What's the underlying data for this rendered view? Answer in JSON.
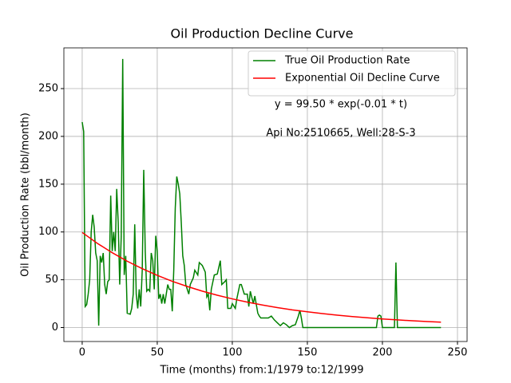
{
  "chart_data": {
    "type": "line",
    "title": "Oil Production Decline Curve",
    "x_label": "Time (months) from:1/1979 to:12/1999",
    "y_label": "Oil Production Rate (bbl/month)",
    "annotations": [
      "y = 99.50 * exp(-0.01 * t)",
      "Api No:2510665, Well:28-S-3"
    ],
    "xlim": [
      -12.2,
      256.4
    ],
    "ylim": [
      -14.6,
      292.6
    ],
    "xticks": [
      0,
      50,
      100,
      150,
      200,
      250
    ],
    "yticks": [
      0,
      50,
      100,
      150,
      200,
      250
    ],
    "grid": true,
    "legend": "upper right",
    "series": [
      {
        "name": "True Oil Production Rate",
        "color": "#008000",
        "x": [
          0,
          1,
          2,
          3,
          4,
          5,
          6,
          7,
          8,
          9,
          10,
          11,
          12,
          13,
          14,
          15,
          16,
          17,
          18,
          19,
          20,
          21,
          22,
          23,
          24,
          25,
          26,
          27,
          28,
          29,
          30,
          32,
          33,
          34,
          35,
          36,
          37,
          38,
          39,
          40,
          41,
          42,
          43,
          44,
          45,
          46,
          47,
          48,
          49,
          50,
          51,
          52,
          53,
          54,
          55,
          56,
          57,
          58,
          59,
          60,
          61,
          62,
          63,
          64,
          65,
          66,
          67,
          68,
          69,
          70,
          71,
          72,
          74,
          75,
          77,
          78,
          80,
          82,
          83,
          84,
          85,
          86,
          88,
          90,
          92,
          93,
          95,
          96,
          97,
          99,
          100,
          102,
          103,
          105,
          106,
          108,
          110,
          111,
          112,
          114,
          115,
          117,
          118,
          119,
          124,
          126,
          128,
          130,
          132,
          134,
          136,
          138,
          140,
          142,
          144,
          145,
          146,
          147,
          196,
          197,
          198,
          199,
          200,
          208,
          209,
          210,
          239
        ],
        "values": [
          215,
          205,
          22,
          24,
          35,
          50,
          100,
          118,
          105,
          78,
          70,
          2,
          75,
          68,
          78,
          45,
          35,
          48,
          50,
          138,
          80,
          100,
          80,
          145,
          110,
          45,
          95,
          281,
          55,
          75,
          15,
          14,
          20,
          35,
          108,
          35,
          20,
          40,
          22,
          60,
          165,
          80,
          38,
          40,
          38,
          78,
          70,
          40,
          96,
          80,
          30,
          35,
          25,
          35,
          25,
          35,
          45,
          40,
          40,
          17,
          60,
          125,
          158,
          150,
          140,
          110,
          75,
          65,
          45,
          40,
          35,
          45,
          52,
          60,
          55,
          68,
          65,
          58,
          32,
          35,
          18,
          40,
          55,
          56,
          70,
          45,
          48,
          50,
          20,
          20,
          25,
          20,
          30,
          45,
          45,
          35,
          35,
          22,
          38,
          25,
          33,
          15,
          12,
          10,
          10,
          12,
          8,
          5,
          2,
          5,
          3,
          0,
          2,
          3,
          12,
          18,
          10,
          0,
          0,
          12,
          13,
          12,
          0,
          0,
          68,
          0,
          0
        ]
      },
      {
        "name": "Exponential Oil Decline Curve",
        "color": "#ff0000",
        "x": [
          0,
          10,
          20,
          30,
          40,
          50,
          60,
          70,
          80,
          90,
          100,
          110,
          120,
          130,
          140,
          150,
          160,
          170,
          180,
          190,
          200,
          210,
          220,
          230,
          239
        ],
        "values": [
          99.5,
          88.2,
          78.3,
          69.4,
          61.6,
          54.6,
          48.4,
          43.0,
          38.1,
          33.8,
          30.0,
          26.6,
          23.6,
          20.9,
          18.5,
          16.5,
          14.6,
          12.9,
          11.5,
          10.2,
          9.0,
          8.0,
          7.1,
          6.3,
          5.6
        ]
      }
    ]
  }
}
